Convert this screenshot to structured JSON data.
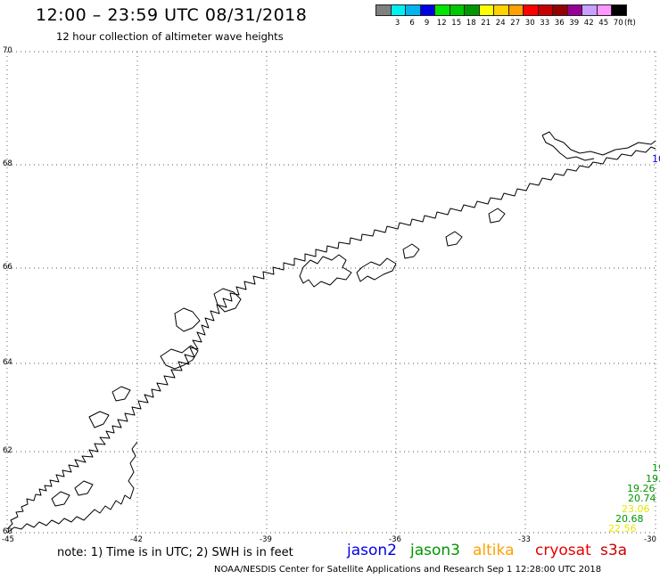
{
  "title": "12:00 – 23:59 UTC 08/31/2018",
  "subtitle": "12 hour collection of altimeter wave heights",
  "color_scale": {
    "unit": "(ft)",
    "items": [
      {
        "label": "",
        "color": "#808080"
      },
      {
        "label": "3",
        "color": "#00f0f0"
      },
      {
        "label": "6",
        "color": "#00b4f0"
      },
      {
        "label": "9",
        "color": "#0000e6"
      },
      {
        "label": "12",
        "color": "#00e600"
      },
      {
        "label": "15",
        "color": "#00c800"
      },
      {
        "label": "18",
        "color": "#009600"
      },
      {
        "label": "21",
        "color": "#ffff00"
      },
      {
        "label": "24",
        "color": "#ffd200"
      },
      {
        "label": "27",
        "color": "#ffa000"
      },
      {
        "label": "30",
        "color": "#ff0000"
      },
      {
        "label": "33",
        "color": "#c80000"
      },
      {
        "label": "36",
        "color": "#960000"
      },
      {
        "label": "39",
        "color": "#960096"
      },
      {
        "label": "42",
        "color": "#c8a0ff"
      },
      {
        "label": "45",
        "color": "#ff96ff"
      },
      {
        "label": "70",
        "color": "#000000"
      }
    ]
  },
  "map": {
    "lon_labels": [
      "-45",
      "-42",
      "-39",
      "-36",
      "-33",
      "-30"
    ],
    "lat_labels": [
      "70",
      "68",
      "66",
      "64",
      "62",
      "60"
    ],
    "coastline_color": "#000000",
    "grid": "dotted"
  },
  "wave_heights": [
    {
      "value": "10",
      "color": "#0000e6"
    },
    {
      "value": "19",
      "color": "#009600"
    },
    {
      "value": "19.",
      "color": "#009600"
    },
    {
      "value": "19.26",
      "color": "#009600"
    },
    {
      "value": "20.74",
      "color": "#009600"
    },
    {
      "value": "23.06",
      "color": "#e6e600"
    },
    {
      "value": "20.68",
      "color": "#009600"
    },
    {
      "value": "22.56",
      "color": "#e6e600"
    }
  ],
  "note": "note:  1) Time is in UTC; 2) SWH is in feet",
  "satellites": [
    {
      "name": "jason2",
      "color": "#0000e6"
    },
    {
      "name": "jason3",
      "color": "#009600"
    },
    {
      "name": "altika",
      "color": "#ffa000"
    },
    {
      "name": "cryosat",
      "color": "#e60000"
    },
    {
      "name": "s3a",
      "color": "#c80000"
    }
  ],
  "credit": "NOAA/NESDIS Center for Satellite Applications and Research    Sep  1 12:28:00 UTC 2018"
}
